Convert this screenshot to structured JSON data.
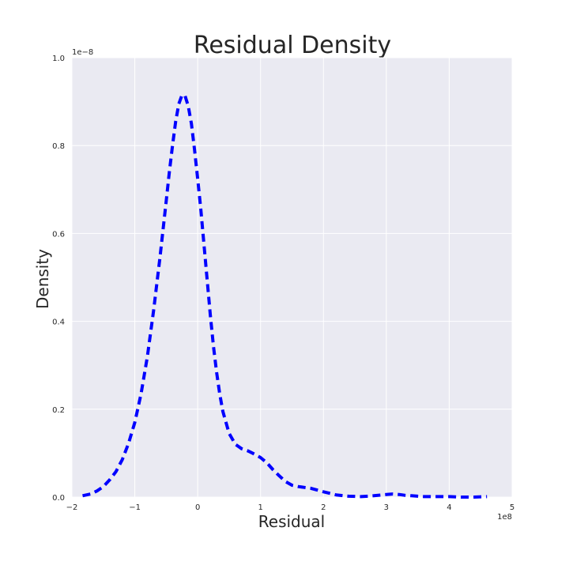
{
  "chart_data": {
    "type": "line",
    "title": "Residual Density",
    "xlabel": "Residual",
    "ylabel": "Density",
    "x_offset_label": "1e8",
    "y_offset_label": "1e−8",
    "xlim": [
      -2,
      5
    ],
    "ylim": [
      0,
      1.0
    ],
    "xticks": [
      -2,
      -1,
      0,
      1,
      2,
      3,
      4,
      5
    ],
    "xtick_labels": [
      "−2",
      "−1",
      "0",
      "1",
      "2",
      "3",
      "4",
      "5"
    ],
    "yticks": [
      0.0,
      0.2,
      0.4,
      0.6,
      0.8,
      1.0
    ],
    "ytick_labels": [
      "0.0",
      "0.2",
      "0.4",
      "0.6",
      "0.8",
      "1.0"
    ],
    "grid": true,
    "background_color": "#EAEAF2",
    "grid_color": "#FFFFFF",
    "series": [
      {
        "color": "#0000FF",
        "line_style": "dashed",
        "x": [
          -1.83,
          -1.7,
          -1.6,
          -1.5,
          -1.4,
          -1.3,
          -1.2,
          -1.1,
          -1.0,
          -0.9,
          -0.8,
          -0.7,
          -0.6,
          -0.5,
          -0.45,
          -0.4,
          -0.35,
          -0.3,
          -0.25,
          -0.2,
          -0.15,
          -0.1,
          -0.05,
          0.0,
          0.05,
          0.1,
          0.15,
          0.2,
          0.25,
          0.3,
          0.35,
          0.4,
          0.5,
          0.6,
          0.7,
          0.8,
          0.9,
          1.0,
          1.1,
          1.2,
          1.3,
          1.4,
          1.5,
          1.6,
          1.7,
          1.8,
          2.0,
          2.2,
          2.4,
          2.6,
          2.8,
          3.0,
          3.1,
          3.2,
          3.3,
          3.4,
          3.5,
          3.6,
          3.8,
          4.0,
          4.2,
          4.4,
          4.6
        ],
        "y": [
          0.003,
          0.007,
          0.014,
          0.024,
          0.039,
          0.058,
          0.085,
          0.122,
          0.17,
          0.235,
          0.32,
          0.425,
          0.545,
          0.675,
          0.74,
          0.8,
          0.855,
          0.895,
          0.915,
          0.913,
          0.89,
          0.85,
          0.79,
          0.725,
          0.655,
          0.575,
          0.495,
          0.415,
          0.345,
          0.285,
          0.235,
          0.195,
          0.145,
          0.12,
          0.11,
          0.105,
          0.098,
          0.09,
          0.078,
          0.062,
          0.048,
          0.035,
          0.027,
          0.024,
          0.022,
          0.02,
          0.012,
          0.005,
          0.002,
          0.001,
          0.003,
          0.006,
          0.007,
          0.006,
          0.004,
          0.003,
          0.002,
          0.001,
          0.001,
          0.001,
          0.0,
          0.0,
          0.001
        ]
      }
    ]
  }
}
